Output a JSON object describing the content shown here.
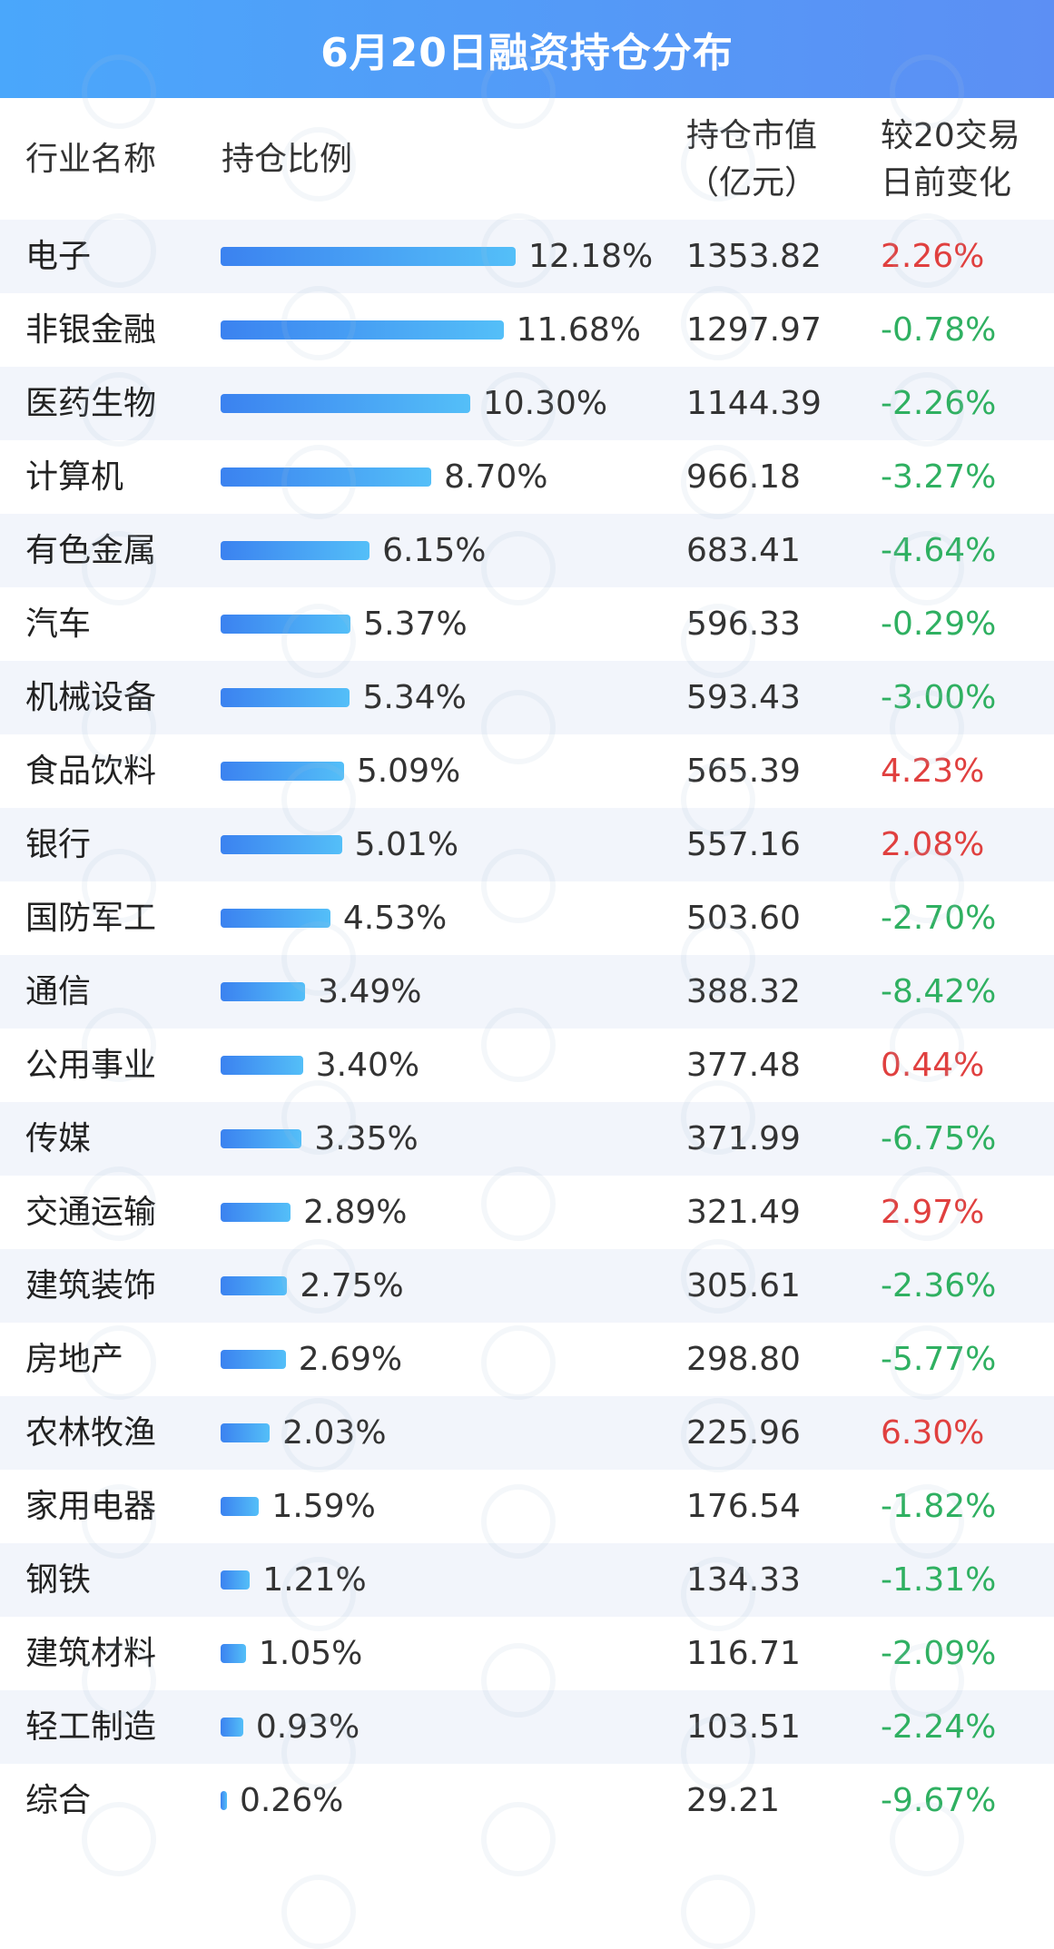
{
  "title": "6月20日融资持仓分布",
  "header": {
    "industry": "行业名称",
    "ratio": "持仓比例",
    "value_line1": "持仓市值",
    "value_line2": "（亿元）",
    "change_line1": "较20交易",
    "change_line2": "日前变化"
  },
  "colors": {
    "positive": "#e0403f",
    "negative": "#2fb061",
    "bar_start": "#3b82f0",
    "bar_end": "#54bff8",
    "title_bg": "#4a9cf8"
  },
  "chart_data": {
    "type": "bar",
    "title": "6月20日融资持仓分布",
    "categories": [
      "电子",
      "非银金融",
      "医药生物",
      "计算机",
      "有色金属",
      "汽车",
      "机械设备",
      "食品饮料",
      "银行",
      "国防军工",
      "通信",
      "公用事业",
      "传媒",
      "交通运输",
      "建筑装饰",
      "房地产",
      "农林牧渔",
      "家用电器",
      "钢铁",
      "建筑材料",
      "轻工制造",
      "综合"
    ],
    "values": [
      12.18,
      11.68,
      10.3,
      8.7,
      6.15,
      5.37,
      5.34,
      5.09,
      5.01,
      4.53,
      3.49,
      3.4,
      3.35,
      2.89,
      2.75,
      2.69,
      2.03,
      1.59,
      1.21,
      1.05,
      0.93,
      0.26
    ],
    "rows": [
      {
        "name": "电子",
        "ratio": 12.18,
        "ratio_label": "12.18%",
        "value": "1353.82",
        "change": "2.26%",
        "dir": "pos"
      },
      {
        "name": "非银金融",
        "ratio": 11.68,
        "ratio_label": "11.68%",
        "value": "1297.97",
        "change": "-0.78%",
        "dir": "neg"
      },
      {
        "name": "医药生物",
        "ratio": 10.3,
        "ratio_label": "10.30%",
        "value": "1144.39",
        "change": "-2.26%",
        "dir": "neg"
      },
      {
        "name": "计算机",
        "ratio": 8.7,
        "ratio_label": "8.70%",
        "value": "966.18",
        "change": "-3.27%",
        "dir": "neg"
      },
      {
        "name": "有色金属",
        "ratio": 6.15,
        "ratio_label": "6.15%",
        "value": "683.41",
        "change": "-4.64%",
        "dir": "neg"
      },
      {
        "name": "汽车",
        "ratio": 5.37,
        "ratio_label": "5.37%",
        "value": "596.33",
        "change": "-0.29%",
        "dir": "neg"
      },
      {
        "name": "机械设备",
        "ratio": 5.34,
        "ratio_label": "5.34%",
        "value": "593.43",
        "change": "-3.00%",
        "dir": "neg"
      },
      {
        "name": "食品饮料",
        "ratio": 5.09,
        "ratio_label": "5.09%",
        "value": "565.39",
        "change": "4.23%",
        "dir": "pos"
      },
      {
        "name": "银行",
        "ratio": 5.01,
        "ratio_label": "5.01%",
        "value": "557.16",
        "change": "2.08%",
        "dir": "pos"
      },
      {
        "name": "国防军工",
        "ratio": 4.53,
        "ratio_label": "4.53%",
        "value": "503.60",
        "change": "-2.70%",
        "dir": "neg"
      },
      {
        "name": "通信",
        "ratio": 3.49,
        "ratio_label": "3.49%",
        "value": "388.32",
        "change": "-8.42%",
        "dir": "neg"
      },
      {
        "name": "公用事业",
        "ratio": 3.4,
        "ratio_label": "3.40%",
        "value": "377.48",
        "change": "0.44%",
        "dir": "pos"
      },
      {
        "name": "传媒",
        "ratio": 3.35,
        "ratio_label": "3.35%",
        "value": "371.99",
        "change": "-6.75%",
        "dir": "neg"
      },
      {
        "name": "交通运输",
        "ratio": 2.89,
        "ratio_label": "2.89%",
        "value": "321.49",
        "change": "2.97%",
        "dir": "pos"
      },
      {
        "name": "建筑装饰",
        "ratio": 2.75,
        "ratio_label": "2.75%",
        "value": "305.61",
        "change": "-2.36%",
        "dir": "neg"
      },
      {
        "name": "房地产",
        "ratio": 2.69,
        "ratio_label": "2.69%",
        "value": "298.80",
        "change": "-5.77%",
        "dir": "neg"
      },
      {
        "name": "农林牧渔",
        "ratio": 2.03,
        "ratio_label": "2.03%",
        "value": "225.96",
        "change": "6.30%",
        "dir": "pos"
      },
      {
        "name": "家用电器",
        "ratio": 1.59,
        "ratio_label": "1.59%",
        "value": "176.54",
        "change": "-1.82%",
        "dir": "neg"
      },
      {
        "name": "钢铁",
        "ratio": 1.21,
        "ratio_label": "1.21%",
        "value": "134.33",
        "change": "-1.31%",
        "dir": "neg"
      },
      {
        "name": "建筑材料",
        "ratio": 1.05,
        "ratio_label": "1.05%",
        "value": "116.71",
        "change": "-2.09%",
        "dir": "neg"
      },
      {
        "name": "轻工制造",
        "ratio": 0.93,
        "ratio_label": "0.93%",
        "value": "103.51",
        "change": "-2.24%",
        "dir": "neg"
      },
      {
        "name": "综合",
        "ratio": 0.26,
        "ratio_label": "0.26%",
        "value": "29.21",
        "change": "-9.67%",
        "dir": "neg"
      }
    ]
  }
}
